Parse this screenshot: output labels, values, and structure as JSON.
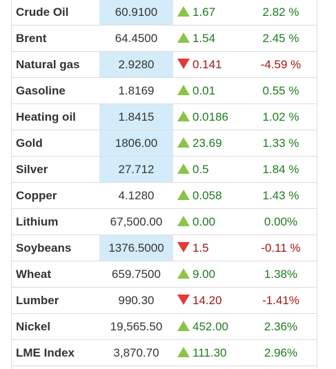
{
  "colors": {
    "up_text": "#1e7b1e",
    "down_text": "#a31515",
    "up_arrow": "#8bc34a",
    "down_arrow": "#e53935",
    "highlight": "#d4ecf9"
  },
  "commodities": [
    {
      "name": "Crude Oil",
      "price": "60.9100",
      "change": "1.67",
      "pct": "2.82 %",
      "direction": "up",
      "highlight": true
    },
    {
      "name": "Brent",
      "price": "64.4500",
      "change": "1.54",
      "pct": "2.45 %",
      "direction": "up",
      "highlight": false
    },
    {
      "name": "Natural gas",
      "price": "2.9280",
      "change": "0.141",
      "pct": "-4.59 %",
      "direction": "down",
      "highlight": true
    },
    {
      "name": "Gasoline",
      "price": "1.8169",
      "change": "0.01",
      "pct": "0.55 %",
      "direction": "up",
      "highlight": false
    },
    {
      "name": "Heating oil",
      "price": "1.8415",
      "change": "0.0186",
      "pct": "1.02 %",
      "direction": "up",
      "highlight": true
    },
    {
      "name": "Gold",
      "price": "1806.00",
      "change": "23.69",
      "pct": "1.33 %",
      "direction": "up",
      "highlight": true
    },
    {
      "name": "Silver",
      "price": "27.712",
      "change": "0.5",
      "pct": "1.84 %",
      "direction": "up",
      "highlight": true
    },
    {
      "name": "Copper",
      "price": "4.1280",
      "change": "0.058",
      "pct": "1.43 %",
      "direction": "up",
      "highlight": false
    },
    {
      "name": "Lithium",
      "price": "67,500.00",
      "change": "0.00",
      "pct": "0.00%",
      "direction": "up",
      "highlight": false
    },
    {
      "name": "Soybeans",
      "price": "1376.5000",
      "change": "1.5",
      "pct": "-0.11 %",
      "direction": "down",
      "highlight": true
    },
    {
      "name": "Wheat",
      "price": "659.7500",
      "change": "9.00",
      "pct": "1.38%",
      "direction": "up",
      "highlight": false
    },
    {
      "name": "Lumber",
      "price": "990.30",
      "change": "14.20",
      "pct": "-1.41%",
      "direction": "down",
      "highlight": false
    },
    {
      "name": "Nickel",
      "price": "19,565.50",
      "change": "452.00",
      "pct": "2.36%",
      "direction": "up",
      "highlight": false
    },
    {
      "name": "LME Index",
      "price": "3,870.70",
      "change": "111.30",
      "pct": "2.96%",
      "direction": "up",
      "highlight": false
    }
  ]
}
